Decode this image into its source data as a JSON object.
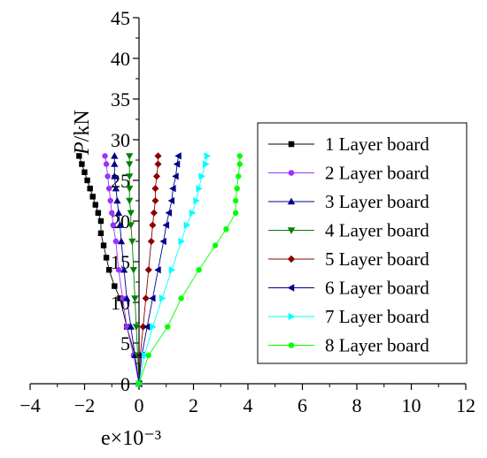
{
  "chart_data": {
    "type": "line",
    "xlabel": "e×10⁻³",
    "ylabel": "P/kN",
    "xlim": [
      -4,
      12
    ],
    "ylim": [
      0,
      45
    ],
    "xticks": [
      -4,
      -2,
      0,
      2,
      4,
      6,
      8,
      10,
      12
    ],
    "yticks": [
      0,
      5,
      10,
      15,
      20,
      25,
      30,
      35,
      40,
      45
    ],
    "grid": false,
    "legend_position": "right",
    "series": [
      {
        "name": "1 Layer board",
        "color": "#000000",
        "marker": "square",
        "points": [
          [
            0,
            0
          ],
          [
            -0.15,
            3.5
          ],
          [
            -0.45,
            7
          ],
          [
            -0.7,
            10.5
          ],
          [
            -0.9,
            12
          ],
          [
            -1.1,
            14
          ],
          [
            -1.2,
            15.5
          ],
          [
            -1.3,
            17
          ],
          [
            -1.4,
            18.5
          ],
          [
            -1.4,
            20
          ],
          [
            -1.5,
            21
          ],
          [
            -1.6,
            22
          ],
          [
            -1.7,
            23
          ],
          [
            -1.8,
            24
          ],
          [
            -1.9,
            25
          ],
          [
            -2.0,
            26
          ],
          [
            -2.1,
            27
          ],
          [
            -2.2,
            28
          ]
        ]
      },
      {
        "name": "2 Layer board",
        "color": "#9b30ff",
        "marker": "circle",
        "points": [
          [
            0,
            0
          ],
          [
            -0.2,
            3.5
          ],
          [
            -0.45,
            7
          ],
          [
            -0.6,
            10.5
          ],
          [
            -0.75,
            14
          ],
          [
            -0.85,
            17.5
          ],
          [
            -0.95,
            19.5
          ],
          [
            -1.0,
            21
          ],
          [
            -1.05,
            22.5
          ],
          [
            -1.1,
            24
          ],
          [
            -1.15,
            25.5
          ],
          [
            -1.2,
            27
          ],
          [
            -1.25,
            28
          ]
        ]
      },
      {
        "name": "3 Layer board",
        "color": "#00008b",
        "marker": "triangle-up",
        "points": [
          [
            0,
            0
          ],
          [
            -0.15,
            3.5
          ],
          [
            -0.3,
            7
          ],
          [
            -0.45,
            10.5
          ],
          [
            -0.55,
            14
          ],
          [
            -0.65,
            17.5
          ],
          [
            -0.7,
            19.5
          ],
          [
            -0.75,
            21
          ],
          [
            -0.8,
            22.5
          ],
          [
            -0.85,
            24
          ],
          [
            -0.9,
            25.5
          ],
          [
            -0.9,
            27
          ],
          [
            -0.9,
            28
          ]
        ]
      },
      {
        "name": "4 Layer board",
        "color": "#008000",
        "marker": "triangle-down",
        "points": [
          [
            0,
            0
          ],
          [
            -0.05,
            3.5
          ],
          [
            -0.1,
            7
          ],
          [
            -0.15,
            10.5
          ],
          [
            -0.2,
            14
          ],
          [
            -0.25,
            17.5
          ],
          [
            -0.3,
            19.5
          ],
          [
            -0.3,
            21
          ],
          [
            -0.35,
            22.5
          ],
          [
            -0.35,
            24
          ],
          [
            -0.35,
            25.5
          ],
          [
            -0.35,
            27
          ],
          [
            -0.35,
            28
          ]
        ]
      },
      {
        "name": "5 Layer board",
        "color": "#8b0000",
        "marker": "diamond",
        "points": [
          [
            0,
            0
          ],
          [
            0.05,
            3.5
          ],
          [
            0.15,
            7
          ],
          [
            0.25,
            10.5
          ],
          [
            0.35,
            14
          ],
          [
            0.45,
            17.5
          ],
          [
            0.5,
            19.5
          ],
          [
            0.55,
            21
          ],
          [
            0.6,
            22.5
          ],
          [
            0.6,
            24
          ],
          [
            0.65,
            25.5
          ],
          [
            0.7,
            27
          ],
          [
            0.7,
            28
          ]
        ]
      },
      {
        "name": "6 Layer board",
        "color": "#00008b",
        "marker": "triangle-left",
        "points": [
          [
            0,
            0
          ],
          [
            0.1,
            3.5
          ],
          [
            0.3,
            7
          ],
          [
            0.5,
            10.5
          ],
          [
            0.7,
            14
          ],
          [
            0.9,
            17.5
          ],
          [
            1.0,
            19.5
          ],
          [
            1.1,
            21
          ],
          [
            1.2,
            22.5
          ],
          [
            1.25,
            24
          ],
          [
            1.35,
            25.5
          ],
          [
            1.4,
            27
          ],
          [
            1.45,
            28
          ]
        ]
      },
      {
        "name": "7 Layer board",
        "color": "#00ffff",
        "marker": "triangle-right",
        "points": [
          [
            0,
            0
          ],
          [
            0.2,
            3.5
          ],
          [
            0.5,
            7
          ],
          [
            0.85,
            10.5
          ],
          [
            1.2,
            14
          ],
          [
            1.55,
            17.5
          ],
          [
            1.75,
            19.5
          ],
          [
            1.95,
            21
          ],
          [
            2.1,
            22.5
          ],
          [
            2.2,
            24
          ],
          [
            2.3,
            25.5
          ],
          [
            2.45,
            27
          ],
          [
            2.5,
            28
          ]
        ]
      },
      {
        "name": "8 Layer board",
        "color": "#00ff00",
        "marker": "circle",
        "points": [
          [
            0,
            0
          ],
          [
            0.35,
            3.5
          ],
          [
            1.05,
            7
          ],
          [
            1.55,
            10.5
          ],
          [
            2.2,
            14
          ],
          [
            2.8,
            17
          ],
          [
            3.2,
            19
          ],
          [
            3.55,
            21
          ],
          [
            3.55,
            22.5
          ],
          [
            3.6,
            24
          ],
          [
            3.65,
            25.5
          ],
          [
            3.7,
            27
          ],
          [
            3.7,
            28
          ]
        ]
      }
    ]
  }
}
